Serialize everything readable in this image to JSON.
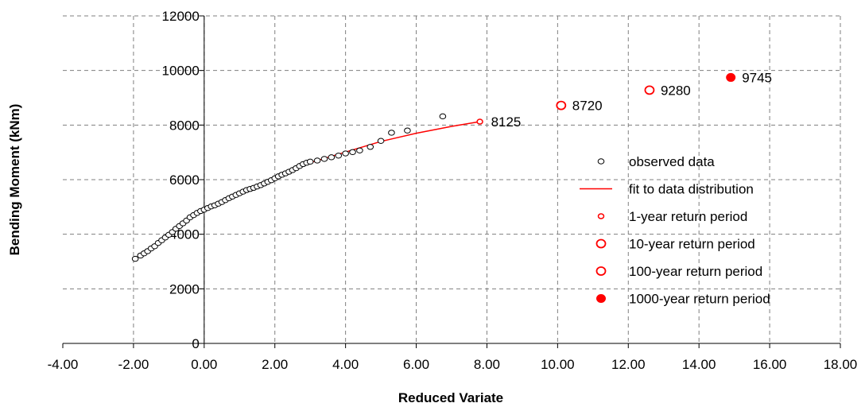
{
  "chart_data": {
    "type": "scatter",
    "title": "",
    "xlabel": "Reduced Variate",
    "ylabel": "Bending Moment (kNm)",
    "xlim": [
      -4,
      18
    ],
    "ylim": [
      0,
      12000
    ],
    "x_ticks": [
      "-4.00",
      "-2.00",
      "0.00",
      "2.00",
      "4.00",
      "6.00",
      "8.00",
      "10.00",
      "12.00",
      "14.00",
      "16.00",
      "18.00"
    ],
    "y_ticks": [
      "0",
      "2000",
      "4000",
      "6000",
      "8000",
      "10000",
      "12000"
    ],
    "grid": true,
    "legend_position": "right",
    "colors": {
      "observed": "#000000",
      "fit": "#ff0000",
      "return": "#ff0000"
    },
    "series": [
      {
        "name": "observed data",
        "marker": "open-circle-black",
        "points": [
          [
            -1.95,
            3100
          ],
          [
            -1.8,
            3220
          ],
          [
            -1.7,
            3300
          ],
          [
            -1.6,
            3380
          ],
          [
            -1.5,
            3480
          ],
          [
            -1.4,
            3560
          ],
          [
            -1.3,
            3680
          ],
          [
            -1.2,
            3780
          ],
          [
            -1.1,
            3880
          ],
          [
            -1.0,
            3980
          ],
          [
            -0.9,
            4080
          ],
          [
            -0.8,
            4200
          ],
          [
            -0.7,
            4300
          ],
          [
            -0.6,
            4400
          ],
          [
            -0.5,
            4500
          ],
          [
            -0.4,
            4620
          ],
          [
            -0.3,
            4700
          ],
          [
            -0.2,
            4780
          ],
          [
            -0.1,
            4850
          ],
          [
            0.0,
            4900
          ],
          [
            0.1,
            4960
          ],
          [
            0.2,
            5020
          ],
          [
            0.3,
            5060
          ],
          [
            0.4,
            5120
          ],
          [
            0.5,
            5180
          ],
          [
            0.6,
            5250
          ],
          [
            0.7,
            5320
          ],
          [
            0.8,
            5380
          ],
          [
            0.9,
            5440
          ],
          [
            1.0,
            5500
          ],
          [
            1.1,
            5560
          ],
          [
            1.2,
            5620
          ],
          [
            1.3,
            5660
          ],
          [
            1.4,
            5700
          ],
          [
            1.5,
            5750
          ],
          [
            1.6,
            5800
          ],
          [
            1.7,
            5860
          ],
          [
            1.8,
            5920
          ],
          [
            1.9,
            5980
          ],
          [
            2.0,
            6050
          ],
          [
            2.1,
            6120
          ],
          [
            2.2,
            6180
          ],
          [
            2.3,
            6230
          ],
          [
            2.4,
            6290
          ],
          [
            2.5,
            6350
          ],
          [
            2.6,
            6420
          ],
          [
            2.7,
            6500
          ],
          [
            2.8,
            6570
          ],
          [
            2.9,
            6620
          ],
          [
            3.0,
            6660
          ],
          [
            3.2,
            6700
          ],
          [
            3.4,
            6760
          ],
          [
            3.6,
            6820
          ],
          [
            3.8,
            6880
          ],
          [
            4.0,
            6960
          ],
          [
            4.2,
            7010
          ],
          [
            4.4,
            7070
          ],
          [
            4.7,
            7200
          ],
          [
            5.0,
            7420
          ],
          [
            5.3,
            7720
          ],
          [
            5.75,
            7800
          ],
          [
            6.75,
            8320
          ]
        ]
      },
      {
        "name": "fit to data distribution",
        "marker": "line-red",
        "points": [
          [
            3.0,
            6620
          ],
          [
            4.0,
            7010
          ],
          [
            5.0,
            7400
          ],
          [
            6.0,
            7700
          ],
          [
            7.0,
            7950
          ],
          [
            7.8,
            8125
          ]
        ]
      },
      {
        "name": "1-year return period",
        "marker": "small-open-circle-red",
        "points": [
          [
            7.8,
            8125
          ]
        ]
      },
      {
        "name": "10-year return period",
        "marker": "open-circle-red",
        "points": [
          [
            10.1,
            8720
          ]
        ]
      },
      {
        "name": "100-year return period",
        "marker": "open-circle-red",
        "points": [
          [
            12.6,
            9280
          ]
        ]
      },
      {
        "name": "1000-year return period",
        "marker": "filled-circle-red",
        "points": [
          [
            14.9,
            9745
          ]
        ]
      }
    ],
    "annotations": [
      {
        "text": "8125",
        "x": 7.8,
        "y": 8125
      },
      {
        "text": "8720",
        "x": 10.1,
        "y": 8720
      },
      {
        "text": "9280",
        "x": 12.6,
        "y": 9280
      },
      {
        "text": "9745",
        "x": 14.9,
        "y": 9745
      }
    ]
  }
}
